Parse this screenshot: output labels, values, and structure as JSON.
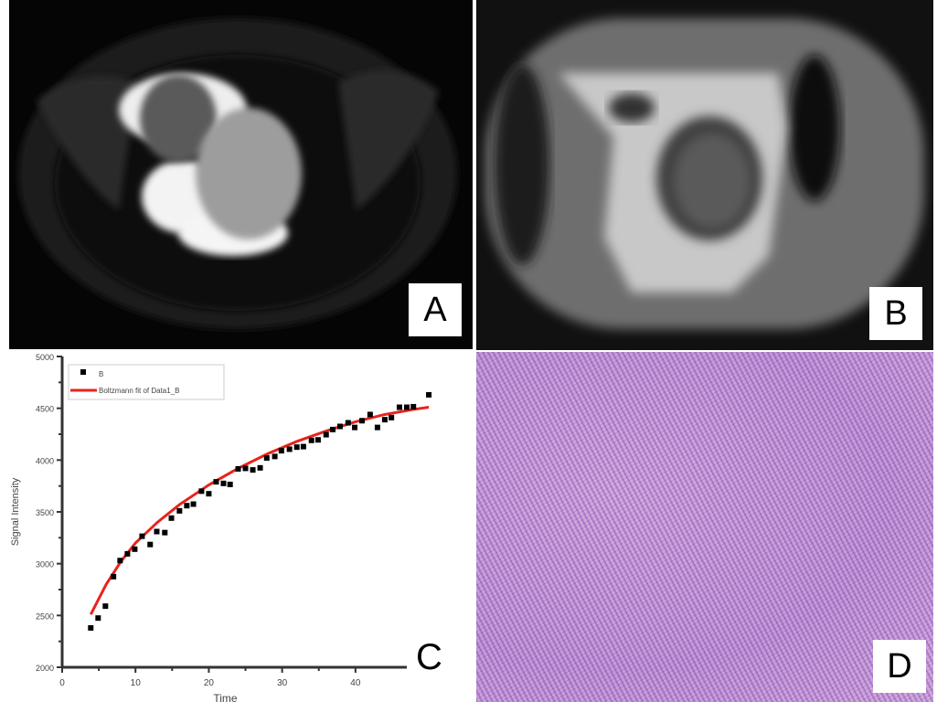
{
  "panels": {
    "a": {
      "label": "A"
    },
    "b": {
      "label": "B"
    },
    "c": {
      "label": "C"
    },
    "d": {
      "label": "D"
    }
  },
  "chart_data": {
    "type": "scatter",
    "xlabel": "Time",
    "ylabel": "Signal Intensity",
    "xlim": [
      0,
      47
    ],
    "ylim": [
      2000,
      5000
    ],
    "xticks": [
      0,
      10,
      20,
      30,
      40
    ],
    "yticks": [
      2000,
      2500,
      3000,
      3500,
      4000,
      4500,
      5000
    ],
    "grid": false,
    "legend_position": "top-left",
    "colors": {
      "points": "#000000",
      "fit": "#e8231e"
    },
    "series": [
      {
        "name": "B",
        "kind": "scatter",
        "x": [
          3.9,
          4.9,
          5.9,
          7.0,
          7.9,
          8.9,
          9.9,
          10.9,
          12.0,
          12.9,
          14.0,
          14.9,
          16.0,
          17.0,
          17.9,
          19.0,
          20.0,
          21.0,
          22.0,
          22.9,
          24.0,
          25.0,
          26.0,
          27.0,
          27.9,
          29.0,
          29.9,
          31.0,
          32.0,
          32.9,
          34.0,
          34.9,
          36.0,
          36.9,
          37.9,
          39.0,
          39.9,
          40.9,
          42.0,
          43.0,
          44.0,
          44.9,
          46.0,
          47.0,
          47.9,
          50.0
        ],
        "y": [
          2380,
          2475,
          2590,
          2875,
          3030,
          3095,
          3140,
          3265,
          3185,
          3310,
          3300,
          3440,
          3510,
          3560,
          3575,
          3700,
          3675,
          3790,
          3775,
          3765,
          3915,
          3920,
          3905,
          3925,
          4020,
          4035,
          4090,
          4105,
          4125,
          4130,
          4190,
          4195,
          4245,
          4295,
          4325,
          4360,
          4315,
          4380,
          4440,
          4315,
          4390,
          4410,
          4510,
          4510,
          4515,
          4630
        ]
      },
      {
        "name": "Boltzmann fit of Data1_B",
        "kind": "line",
        "x": [
          3.9,
          6,
          8,
          10,
          13,
          16,
          20,
          24,
          28,
          32,
          36,
          40,
          44,
          48,
          50
        ],
        "y": [
          2510,
          2800,
          3020,
          3200,
          3400,
          3570,
          3760,
          3920,
          4060,
          4180,
          4280,
          4370,
          4440,
          4490,
          4510
        ]
      }
    ]
  }
}
